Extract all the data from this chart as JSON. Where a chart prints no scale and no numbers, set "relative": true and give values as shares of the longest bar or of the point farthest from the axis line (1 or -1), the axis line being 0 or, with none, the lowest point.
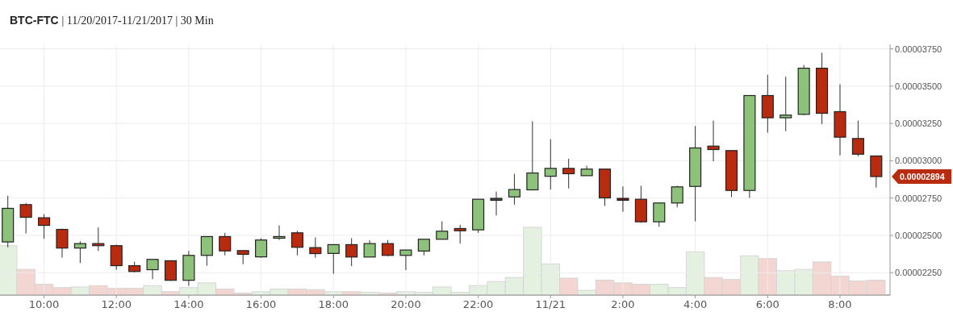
{
  "chart_data": [
    {
      "type": "candlestick",
      "title": "BTC-FTC | 11/20/2017-11/21/2017 | 30 Min",
      "x": [
        "2017-11-20T09:00",
        "2017-11-20T09:30",
        "2017-11-20T10:00",
        "2017-11-20T10:30",
        "2017-11-20T11:00",
        "2017-11-20T11:30",
        "2017-11-20T12:00",
        "2017-11-20T12:30",
        "2017-11-20T13:00",
        "2017-11-20T13:30",
        "2017-11-20T14:00",
        "2017-11-20T14:30",
        "2017-11-20T15:00",
        "2017-11-20T15:30",
        "2017-11-20T16:00",
        "2017-11-20T16:30",
        "2017-11-20T17:00",
        "2017-11-20T17:30",
        "2017-11-20T18:00",
        "2017-11-20T18:30",
        "2017-11-20T19:00",
        "2017-11-20T19:30",
        "2017-11-20T20:00",
        "2017-11-20T20:30",
        "2017-11-20T21:00",
        "2017-11-20T21:30",
        "2017-11-20T22:00",
        "2017-11-20T22:30",
        "2017-11-20T23:00",
        "2017-11-20T23:30",
        "2017-11-21T00:00",
        "2017-11-21T00:30",
        "2017-11-21T01:00",
        "2017-11-21T01:30",
        "2017-11-21T02:00",
        "2017-11-21T02:30",
        "2017-11-21T03:00",
        "2017-11-21T03:30",
        "2017-11-21T04:00",
        "2017-11-21T04:30",
        "2017-11-21T05:00",
        "2017-11-21T05:30",
        "2017-11-21T06:00",
        "2017-11-21T06:30",
        "2017-11-21T07:00",
        "2017-11-21T07:30",
        "2017-11-21T08:00",
        "2017-11-21T08:30",
        "2017-11-21T09:00"
      ],
      "ohlc": [
        [
          2.456e-05,
          2.766e-05,
          2.42e-05,
          2.681e-05
        ],
        [
          2.706e-05,
          2.717e-05,
          2.513e-05,
          2.621e-05
        ],
        [
          2.618e-05,
          2.643e-05,
          2.477e-05,
          2.567e-05
        ],
        [
          2.54e-05,
          2.545e-05,
          2.351e-05,
          2.415e-05
        ],
        [
          2.415e-05,
          2.46e-05,
          2.315e-05,
          2.445e-05
        ],
        [
          2.445e-05,
          2.553e-05,
          2.396e-05,
          2.431e-05
        ],
        [
          2.431e-05,
          2.438e-05,
          2.27e-05,
          2.297e-05
        ],
        [
          2.297e-05,
          2.324e-05,
          2.252e-05,
          2.258e-05
        ],
        [
          2.27e-05,
          2.339e-05,
          2.207e-05,
          2.339e-05
        ],
        [
          2.33e-05,
          2.33e-05,
          2.195e-05,
          2.199e-05
        ],
        [
          2.199e-05,
          2.396e-05,
          2.162e-05,
          2.366e-05
        ],
        [
          2.366e-05,
          2.492e-05,
          2.297e-05,
          2.492e-05
        ],
        [
          2.492e-05,
          2.517e-05,
          2.366e-05,
          2.396e-05
        ],
        [
          2.398e-05,
          2.398e-05,
          2.307e-05,
          2.373e-05
        ],
        [
          2.356e-05,
          2.481e-05,
          2.35e-05,
          2.469e-05
        ],
        [
          2.481e-05,
          2.567e-05,
          2.469e-05,
          2.492e-05
        ],
        [
          2.517e-05,
          2.531e-05,
          2.366e-05,
          2.42e-05
        ],
        [
          2.418e-05,
          2.486e-05,
          2.35e-05,
          2.378e-05
        ],
        [
          2.379e-05,
          2.438e-05,
          2.243e-05,
          2.438e-05
        ],
        [
          2.438e-05,
          2.481e-05,
          2.294e-05,
          2.355e-05
        ],
        [
          2.355e-05,
          2.468e-05,
          2.355e-05,
          2.445e-05
        ],
        [
          2.445e-05,
          2.468e-05,
          2.36e-05,
          2.366e-05
        ],
        [
          2.366e-05,
          2.402e-05,
          2.267e-05,
          2.402e-05
        ],
        [
          2.395e-05,
          2.474e-05,
          2.366e-05,
          2.474e-05
        ],
        [
          2.474e-05,
          2.594e-05,
          2.474e-05,
          2.528e-05
        ],
        [
          2.546e-05,
          2.571e-05,
          2.445e-05,
          2.531e-05
        ],
        [
          2.537e-05,
          2.742e-05,
          2.517e-05,
          2.742e-05
        ],
        [
          2.735e-05,
          2.793e-05,
          2.634e-05,
          2.748e-05
        ],
        [
          2.758e-05,
          2.913e-05,
          2.706e-05,
          2.807e-05
        ],
        [
          2.805e-05,
          3.264e-05,
          2.805e-05,
          2.918e-05
        ],
        [
          2.896e-05,
          3.144e-05,
          2.807e-05,
          2.949e-05
        ],
        [
          2.949e-05,
          3.014e-05,
          2.814e-05,
          2.913e-05
        ],
        [
          2.9e-05,
          2.967e-05,
          2.9e-05,
          2.944e-05
        ],
        [
          2.944e-05,
          2.944e-05,
          2.697e-05,
          2.751e-05
        ],
        [
          2.748e-05,
          2.828e-05,
          2.658e-05,
          2.735e-05
        ],
        [
          2.742e-05,
          2.832e-05,
          2.585e-05,
          2.591e-05
        ],
        [
          2.591e-05,
          2.717e-05,
          2.558e-05,
          2.717e-05
        ],
        [
          2.717e-05,
          2.832e-05,
          2.688e-05,
          2.825e-05
        ],
        [
          2.828e-05,
          3.233e-05,
          2.594e-05,
          3.086e-05
        ],
        [
          3.098e-05,
          3.269e-05,
          2.996e-05,
          3.075e-05
        ],
        [
          3.068e-05,
          3.068e-05,
          2.756e-05,
          2.801e-05
        ],
        [
          2.801e-05,
          3.437e-05,
          2.751e-05,
          3.437e-05
        ],
        [
          3.437e-05,
          3.576e-05,
          3.188e-05,
          3.288e-05
        ],
        [
          3.288e-05,
          3.563e-05,
          3.198e-05,
          3.306e-05
        ],
        [
          3.311e-05,
          3.642e-05,
          3.306e-05,
          3.62e-05
        ],
        [
          3.62e-05,
          3.723e-05,
          3.246e-05,
          3.318e-05
        ],
        [
          3.329e-05,
          3.512e-05,
          3.036e-05,
          3.158e-05
        ],
        [
          3.149e-05,
          3.269e-05,
          3.03e-05,
          3.044e-05
        ],
        [
          3.032e-05,
          3.032e-05,
          2.82e-05,
          2.894e-05
        ]
      ],
      "colors": [
        "#8cc27a",
        "#b92b0f",
        "#b92b0f",
        "#b92b0f",
        "#8cc27a",
        "#b92b0f",
        "#b92b0f",
        "#b92b0f",
        "#8cc27a",
        "#b92b0f",
        "#8cc27a",
        "#8cc27a",
        "#b92b0f",
        "#b92b0f",
        "#8cc27a",
        "#8cc27a",
        "#b92b0f",
        "#b92b0f",
        "#8cc27a",
        "#b92b0f",
        "#8cc27a",
        "#b92b0f",
        "#8cc27a",
        "#8cc27a",
        "#8cc27a",
        "#b92b0f",
        "#8cc27a",
        "#4a5a48",
        "#8cc27a",
        "#8cc27a",
        "#8cc27a",
        "#b92b0f",
        "#8cc27a",
        "#b92b0f",
        "#6b1e12",
        "#b92b0f",
        "#8cc27a",
        "#8cc27a",
        "#8cc27a",
        "#b92b0f",
        "#b92b0f",
        "#8cc27a",
        "#b92b0f",
        "#8cc27a",
        "#8cc27a",
        "#b92b0f",
        "#b92b0f",
        "#b92b0f",
        "#b92b0f"
      ],
      "xlim": [
        "2017-11-20T08:47",
        "2017-11-21T09:23"
      ],
      "xticks": [
        {
          "value": "2017-11-20T10:00",
          "label": "10:00"
        },
        {
          "value": "2017-11-20T12:00",
          "label": "12:00"
        },
        {
          "value": "2017-11-20T14:00",
          "label": "14:00"
        },
        {
          "value": "2017-11-20T16:00",
          "label": "16:00"
        },
        {
          "value": "2017-11-20T18:00",
          "label": "18:00"
        },
        {
          "value": "2017-11-20T20:00",
          "label": "20:00"
        },
        {
          "value": "2017-11-20T22:00",
          "label": "22:00"
        },
        {
          "value": "2017-11-21T00:00",
          "label": "11/21"
        },
        {
          "value": "2017-11-21T02:00",
          "label": "2:00"
        },
        {
          "value": "2017-11-21T04:00",
          "label": "4:00"
        },
        {
          "value": "2017-11-21T06:00",
          "label": "6:00"
        },
        {
          "value": "2017-11-21T08:00",
          "label": "8:00"
        }
      ],
      "ylim": [
        2.1e-05,
        3.78e-05
      ],
      "yticks": [
        {
          "value": 2.25e-05,
          "label": "0.00002250"
        },
        {
          "value": 2.5e-05,
          "label": "0.00002500"
        },
        {
          "value": 2.75e-05,
          "label": "0.00002750"
        },
        {
          "value": 3e-05,
          "label": "0.00003000"
        },
        {
          "value": 3.25e-05,
          "label": "0.00003250"
        },
        {
          "value": 3.5e-05,
          "label": "0.00003500"
        },
        {
          "value": 3.75e-05,
          "label": "0.00003750"
        }
      ],
      "grid": true,
      "annotations": [
        {
          "text": "0.00002894",
          "x": "2017-11-21T09:00",
          "y": 2.894e-05
        }
      ]
    },
    {
      "type": "bar",
      "relative": true,
      "x": [
        "2017-11-20T09:00",
        "2017-11-20T09:30",
        "2017-11-20T10:00",
        "2017-11-20T10:30",
        "2017-11-20T11:00",
        "2017-11-20T11:30",
        "2017-11-20T12:00",
        "2017-11-20T12:30",
        "2017-11-20T13:00",
        "2017-11-20T13:30",
        "2017-11-20T14:00",
        "2017-11-20T14:30",
        "2017-11-20T15:00",
        "2017-11-20T15:30",
        "2017-11-20T16:00",
        "2017-11-20T16:30",
        "2017-11-20T17:00",
        "2017-11-20T17:30",
        "2017-11-20T18:00",
        "2017-11-20T18:30",
        "2017-11-20T19:00",
        "2017-11-20T19:30",
        "2017-11-20T20:00",
        "2017-11-20T20:30",
        "2017-11-20T21:00",
        "2017-11-20T21:30",
        "2017-11-20T22:00",
        "2017-11-20T22:30",
        "2017-11-20T23:00",
        "2017-11-20T23:30",
        "2017-11-21T00:00",
        "2017-11-21T00:30",
        "2017-11-21T01:00",
        "2017-11-21T01:30",
        "2017-11-21T02:00",
        "2017-11-21T02:30",
        "2017-11-21T03:00",
        "2017-11-21T03:30",
        "2017-11-21T04:00",
        "2017-11-21T04:30",
        "2017-11-21T05:00",
        "2017-11-21T05:30",
        "2017-11-21T06:00",
        "2017-11-21T06:30",
        "2017-11-21T07:00",
        "2017-11-21T07:30",
        "2017-11-21T08:00",
        "2017-11-21T08:30",
        "2017-11-21T09:00"
      ],
      "values": [
        0.73,
        0.38,
        0.16,
        0.11,
        0.12,
        0.14,
        0.1,
        0.1,
        0.14,
        0.05,
        0.11,
        0.18,
        0.09,
        0.03,
        0.05,
        0.09,
        0.09,
        0.08,
        0.05,
        0.05,
        0.04,
        0.03,
        0.05,
        0.04,
        0.12,
        0.04,
        0.14,
        0.2,
        0.26,
        1,
        0.46,
        0.25,
        0.07,
        0.22,
        0.18,
        0.16,
        0.16,
        0.11,
        0.64,
        0.26,
        0.23,
        0.58,
        0.54,
        0.36,
        0.38,
        0.49,
        0.28,
        0.21,
        0.22
      ],
      "colors": [
        "#e4f1e0",
        "#f3d5d1",
        "#f3d5d1",
        "#f3d5d1",
        "#e4f1e0",
        "#f3d5d1",
        "#f3d5d1",
        "#f3d5d1",
        "#e4f1e0",
        "#f3d5d1",
        "#e4f1e0",
        "#e4f1e0",
        "#f3d5d1",
        "#f3d5d1",
        "#e4f1e0",
        "#e4f1e0",
        "#f3d5d1",
        "#f3d5d1",
        "#e4f1e0",
        "#f3d5d1",
        "#e4f1e0",
        "#f3d5d1",
        "#e4f1e0",
        "#e4f1e0",
        "#e4f1e0",
        "#e4f1e0",
        "#e4f1e0",
        "#e4f1e0",
        "#e4f1e0",
        "#e4f1e0",
        "#e4f1e0",
        "#f3d5d1",
        "#e4f1e0",
        "#f3d5d1",
        "#f3d5d1",
        "#f3d5d1",
        "#e4f1e0",
        "#e4f1e0",
        "#e4f1e0",
        "#f3d5d1",
        "#f3d5d1",
        "#e4f1e0",
        "#f3d5d1",
        "#e4f1e0",
        "#e4f1e0",
        "#f3d5d1",
        "#f3d5d1",
        "#f3d5d1",
        "#f3d5d1"
      ],
      "xlim": [
        "2017-11-20T08:47",
        "2017-11-21T09:23"
      ]
    }
  ]
}
